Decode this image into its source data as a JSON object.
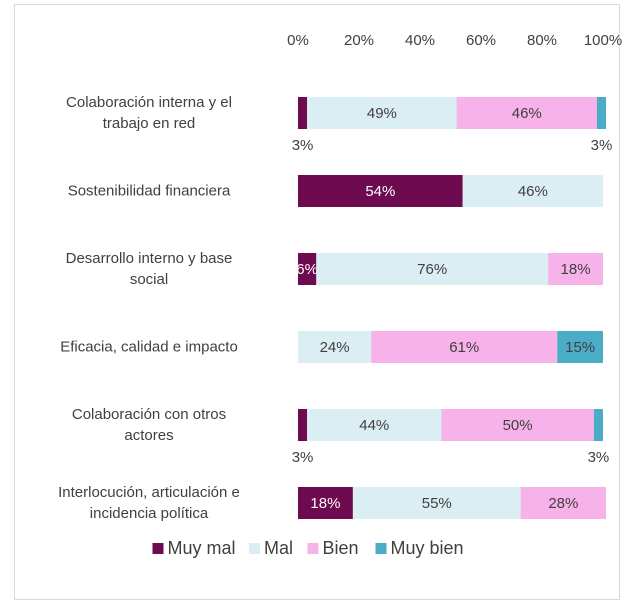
{
  "chart_data": {
    "type": "bar",
    "orientation": "horizontal",
    "stacked": true,
    "categories": [
      "Colaboración interna y el\ntrabajo en red",
      "Sostenibilidad financiera",
      "Desarrollo interno y base\nsocial",
      "Eficacia, calidad e impacto",
      "Colaboración con otros\nactores",
      "Interlocución, articulación e\nincidencia política"
    ],
    "series": [
      {
        "name": "Muy mal",
        "color": "#6e0b50",
        "values": [
          3,
          54,
          6,
          null,
          3,
          18
        ],
        "value_labels": [
          "3%",
          "54%",
          "6%",
          null,
          "3%",
          "18%"
        ]
      },
      {
        "name": "Mal",
        "color": "#dbeef4",
        "values": [
          49,
          46,
          76,
          24,
          44,
          55
        ],
        "value_labels": [
          "49%",
          "46%",
          "76%",
          "24%",
          "44%",
          "55%"
        ]
      },
      {
        "name": "Bien",
        "color": "#f7b2e9",
        "values": [
          46,
          null,
          18,
          61,
          50,
          28
        ],
        "value_labels": [
          "46%",
          null,
          "18%",
          "61%",
          "50%",
          "28%"
        ]
      },
      {
        "name": "Muy bien",
        "color": "#4bacc6",
        "values": [
          3,
          null,
          null,
          15,
          3,
          null
        ],
        "value_labels": [
          "3%",
          null,
          null,
          "15%",
          "3%",
          null
        ]
      }
    ],
    "xlim": [
      0,
      100
    ],
    "xticks": [
      {
        "value": 0,
        "label": "0%"
      },
      {
        "value": 20,
        "label": "20%"
      },
      {
        "value": 40,
        "label": "40%"
      },
      {
        "value": 60,
        "label": "60%"
      },
      {
        "value": 80,
        "label": "80%"
      },
      {
        "value": 100,
        "label": "100%"
      }
    ],
    "grid": false,
    "legend": "bottom"
  }
}
